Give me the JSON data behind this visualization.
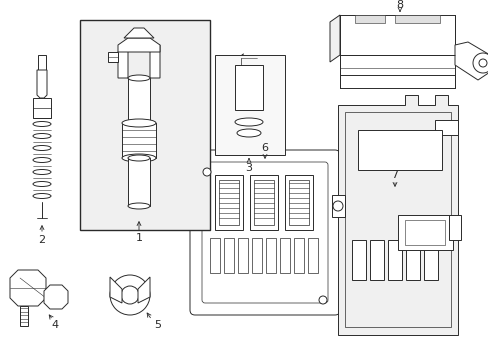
{
  "bg_color": "#ffffff",
  "line_color": "#2a2a2a",
  "fig_width": 4.89,
  "fig_height": 3.6,
  "dpi": 100,
  "lw": 0.7,
  "fill_light": "#f0f0f0",
  "fill_white": "#ffffff"
}
